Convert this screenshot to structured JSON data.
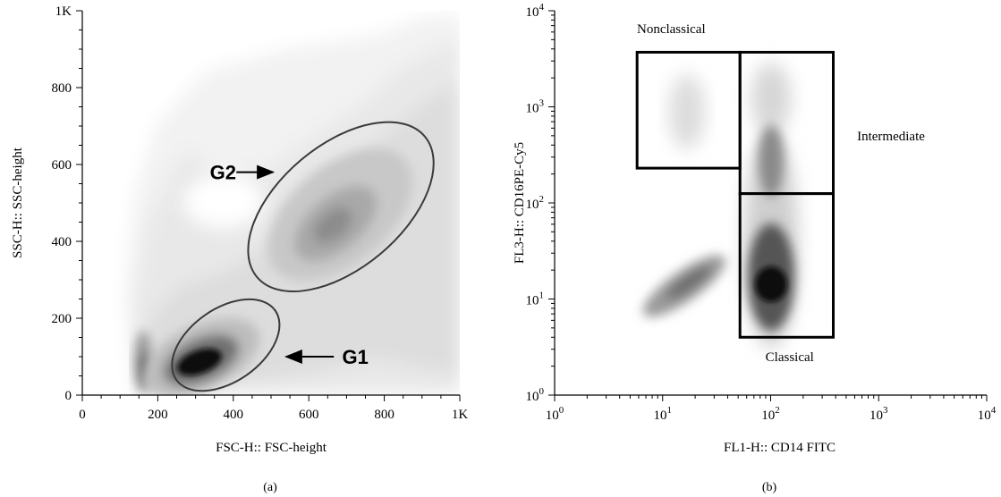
{
  "chart_data": [
    {
      "type": "density",
      "panel_label": "(a)",
      "xlabel": "FSC-H:: FSC-height",
      "ylabel": "SSC-H:: SSC-height",
      "xlim": [
        0,
        1000
      ],
      "ylim": [
        0,
        1000
      ],
      "xticks": [
        {
          "v": 0,
          "label": "0"
        },
        {
          "v": 200,
          "label": "200"
        },
        {
          "v": 400,
          "label": "400"
        },
        {
          "v": 600,
          "label": "600"
        },
        {
          "v": 800,
          "label": "800"
        },
        {
          "v": 1000,
          "label": "1K"
        }
      ],
      "yticks": [
        {
          "v": 0,
          "label": "0"
        },
        {
          "v": 200,
          "label": "200"
        },
        {
          "v": 400,
          "label": "400"
        },
        {
          "v": 600,
          "label": "600"
        },
        {
          "v": 800,
          "label": "800"
        },
        {
          "v": 1000,
          "label": "1K"
        }
      ],
      "gates": [
        {
          "name": "G1",
          "shape": "ellipse",
          "cx": 380,
          "cy": 130,
          "rx": 160,
          "ry": 95,
          "rotation": -35
        },
        {
          "name": "G2",
          "shape": "ellipse",
          "cx": 685,
          "cy": 490,
          "rx": 290,
          "ry": 160,
          "rotation": -40
        }
      ],
      "annotations": [
        {
          "text": "G1",
          "x": 690,
          "y": 100,
          "arrow_to": [
            540,
            100
          ]
        },
        {
          "text": "G2",
          "x": 330,
          "y": 580,
          "arrow_to": [
            505,
            580
          ]
        }
      ],
      "density_clusters": [
        {
          "x": 320,
          "y": 80,
          "intensity": 1.0
        },
        {
          "x": 700,
          "y": 450,
          "intensity": 0.55
        },
        {
          "x": 160,
          "y": 80,
          "intensity": 0.6
        }
      ]
    },
    {
      "type": "density",
      "panel_label": "(b)",
      "xlabel": "FL1-H:: CD14 FITC",
      "ylabel": "FL3-H:: CD16PE-Cy5",
      "xscale": "log",
      "yscale": "log",
      "xlim": [
        1,
        10000
      ],
      "ylim": [
        1,
        10000
      ],
      "xticks": [
        {
          "v": 1,
          "base": "10",
          "exp": "0"
        },
        {
          "v": 10,
          "base": "10",
          "exp": "1"
        },
        {
          "v": 100,
          "base": "10",
          "exp": "2"
        },
        {
          "v": 1000,
          "base": "10",
          "exp": "3"
        },
        {
          "v": 10000,
          "base": "10",
          "exp": "4"
        }
      ],
      "yticks": [
        {
          "v": 1,
          "base": "10",
          "exp": "0"
        },
        {
          "v": 10,
          "base": "10",
          "exp": "1"
        },
        {
          "v": 100,
          "base": "10",
          "exp": "2"
        },
        {
          "v": 1000,
          "base": "10",
          "exp": "3"
        },
        {
          "v": 10000,
          "base": "10",
          "exp": "4"
        }
      ],
      "gates": [
        {
          "name": "Nonclassical",
          "shape": "rect",
          "x0": 5.8,
          "x1": 52,
          "y0": 230,
          "y1": 3700
        },
        {
          "name": "Intermediate",
          "shape": "rect",
          "x0": 52,
          "x1": 380,
          "y0": 125,
          "y1": 3700
        },
        {
          "name": "Classical",
          "shape": "rect",
          "x0": 52,
          "x1": 380,
          "y0": 4,
          "y1": 125
        }
      ],
      "annotations": [
        {
          "text": "Nonclassical",
          "x": 12,
          "y": 6500
        },
        {
          "text": "Intermediate",
          "x": 1300,
          "y": 500
        },
        {
          "text": "Classical",
          "x": 150,
          "y": 2.5
        }
      ],
      "density_clusters": [
        {
          "x": 100,
          "y": 15,
          "intensity": 1.0
        },
        {
          "x": 110,
          "y": 400,
          "intensity": 0.45
        },
        {
          "x": 18,
          "y": 1000,
          "intensity": 0.2
        },
        {
          "x": 20,
          "y": 18,
          "intensity": 0.5
        }
      ]
    }
  ]
}
